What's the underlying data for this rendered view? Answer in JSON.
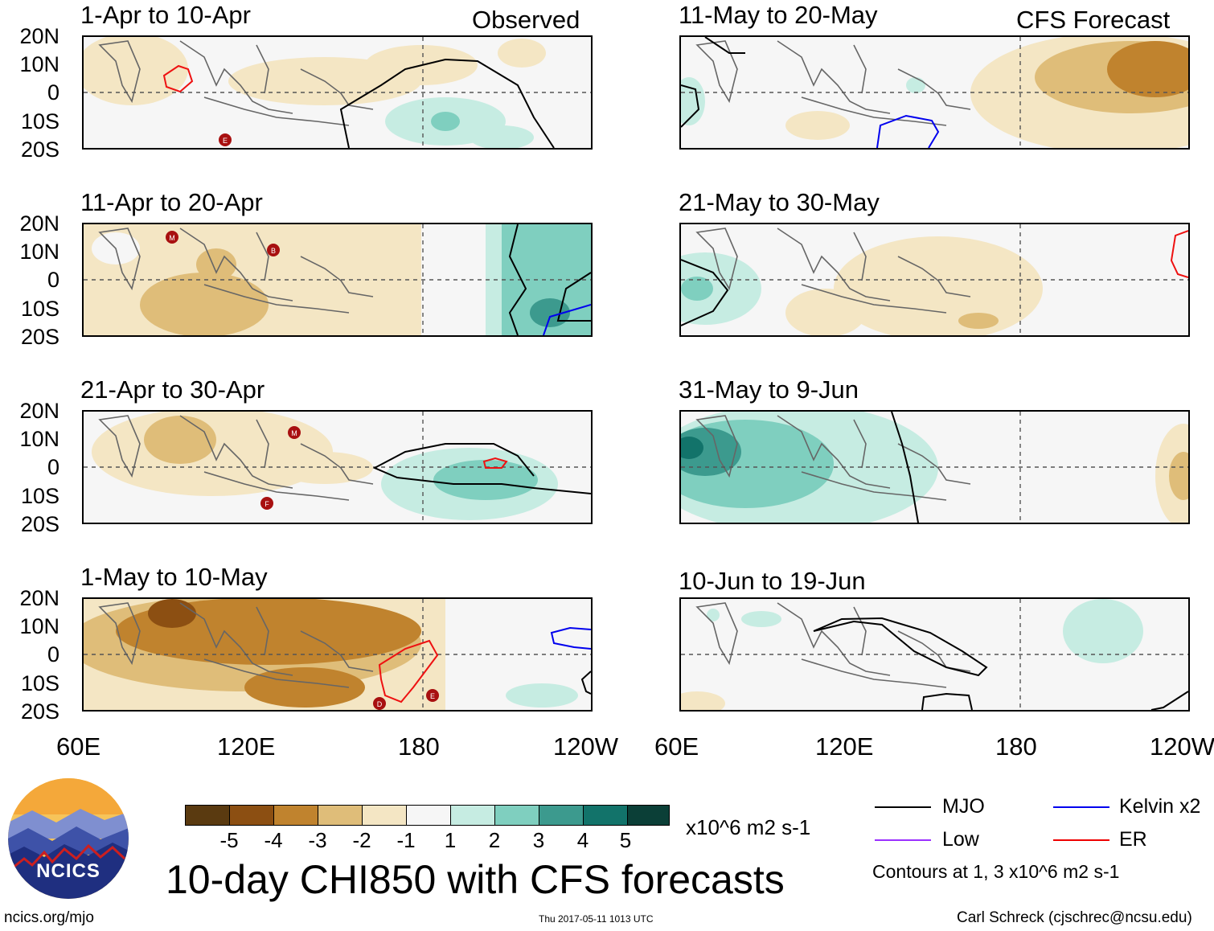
{
  "headers": {
    "left": "Observed",
    "right": "CFS Forecast"
  },
  "panels": [
    {
      "title": "1-Apr to 10-Apr"
    },
    {
      "title": "11-Apr to 20-Apr"
    },
    {
      "title": "21-Apr to 30-Apr"
    },
    {
      "title": "1-May to 10-May"
    },
    {
      "title": "11-May to 20-May"
    },
    {
      "title": "21-May to 30-May"
    },
    {
      "title": "31-May to 9-Jun"
    },
    {
      "title": "10-Jun to 19-Jun"
    }
  ],
  "lat_labels": [
    "20N",
    "10N",
    "0",
    "10S",
    "20S"
  ],
  "lon_labels": [
    "60E",
    "120E",
    "180",
    "120W"
  ],
  "colorbar": {
    "ticks": [
      "-5",
      "-4",
      "-3",
      "-2",
      "-1",
      "1",
      "2",
      "3",
      "4",
      "5"
    ],
    "units": "x10^6 m2 s-1",
    "colors": [
      "#5a3a10",
      "#8c4f12",
      "#c0832e",
      "#dfbd79",
      "#f4e6c4",
      "#f6f6f6",
      "#c6ece2",
      "#7fcfbf",
      "#3c9a8e",
      "#12736a",
      "#0b3f37"
    ]
  },
  "title": "10-day CHI850 with CFS forecasts",
  "legend": {
    "items": [
      {
        "label": "MJO",
        "color": "#000000"
      },
      {
        "label": "Kelvin x2",
        "color": "#0000ee"
      },
      {
        "label": "Low",
        "color": "#9b30ff"
      },
      {
        "label": "ER",
        "color": "#ee0000"
      }
    ],
    "note": "Contours at 1, 3 x10^6 m2 s-1"
  },
  "logo_text": "NCICS",
  "footer": {
    "left": "ncics.org/mjo",
    "center": "Thu 2017-05-11 1013 UTC",
    "right": "Carl Schreck (cjschrec@ncsu.edu)"
  },
  "storm_markers": [
    {
      "panel": 0,
      "letter": "E"
    },
    {
      "panel": 1,
      "letter": "M"
    },
    {
      "panel": 1,
      "letter": "B"
    },
    {
      "panel": 2,
      "letter": "M"
    },
    {
      "panel": 2,
      "letter": "F"
    },
    {
      "panel": 3,
      "letter": "D"
    },
    {
      "panel": 3,
      "letter": "E"
    }
  ]
}
